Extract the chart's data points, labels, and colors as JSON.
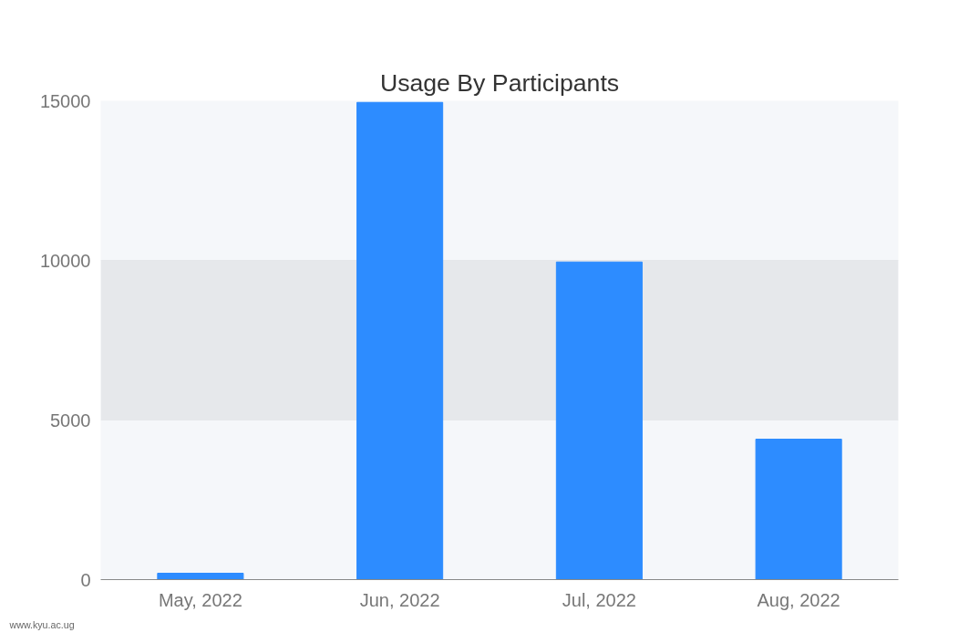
{
  "chart_data": {
    "type": "bar",
    "title": "Usage By Participants",
    "categories": [
      "May, 2022",
      "Jun, 2022",
      "Jul, 2022",
      "Aug, 2022"
    ],
    "values": [
      200,
      14950,
      9950,
      4400
    ],
    "color": "#2d8cff",
    "bands": [
      {
        "axis": "y",
        "from": 5000,
        "to": 10000,
        "color": "#e6e8eb"
      }
    ],
    "ylim": [
      0,
      15000
    ],
    "yticks": [
      0,
      5000,
      10000,
      15000
    ],
    "grid": "y",
    "annotations": [
      "www.kyu.ac.ug"
    ]
  }
}
